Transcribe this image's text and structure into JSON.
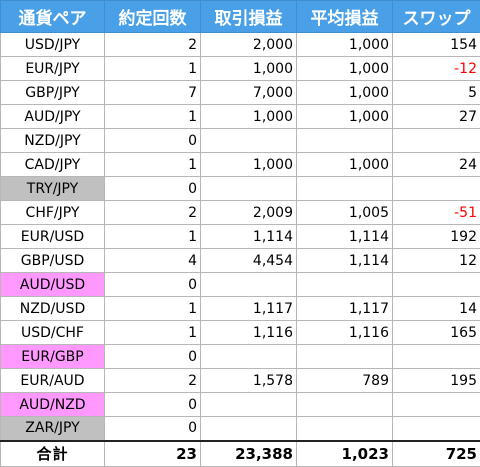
{
  "colors": {
    "header_bg": "#4aa0e6",
    "highlight_gray": "#c0c0c0",
    "highlight_pink": "#ff99ff",
    "negative": "#ff0000"
  },
  "headers": [
    "通貨ペア",
    "約定回数",
    "取引損益",
    "平均損益",
    "スワップ"
  ],
  "rows": [
    {
      "pair": "USD/JPY",
      "count": "2",
      "pnl": "2,000",
      "avg": "1,000",
      "swap": "154",
      "highlight": "",
      "neg": false
    },
    {
      "pair": "EUR/JPY",
      "count": "1",
      "pnl": "1,000",
      "avg": "1,000",
      "swap": "-12",
      "highlight": "",
      "neg": true
    },
    {
      "pair": "GBP/JPY",
      "count": "7",
      "pnl": "7,000",
      "avg": "1,000",
      "swap": "5",
      "highlight": "",
      "neg": false
    },
    {
      "pair": "AUD/JPY",
      "count": "1",
      "pnl": "1,000",
      "avg": "1,000",
      "swap": "27",
      "highlight": "",
      "neg": false
    },
    {
      "pair": "NZD/JPY",
      "count": "0",
      "pnl": "",
      "avg": "",
      "swap": "",
      "highlight": "",
      "neg": false
    },
    {
      "pair": "CAD/JPY",
      "count": "1",
      "pnl": "1,000",
      "avg": "1,000",
      "swap": "24",
      "highlight": "",
      "neg": false
    },
    {
      "pair": "TRY/JPY",
      "count": "0",
      "pnl": "",
      "avg": "",
      "swap": "",
      "highlight": "gray",
      "neg": false
    },
    {
      "pair": "CHF/JPY",
      "count": "2",
      "pnl": "2,009",
      "avg": "1,005",
      "swap": "-51",
      "highlight": "",
      "neg": true
    },
    {
      "pair": "EUR/USD",
      "count": "1",
      "pnl": "1,114",
      "avg": "1,114",
      "swap": "192",
      "highlight": "",
      "neg": false
    },
    {
      "pair": "GBP/USD",
      "count": "4",
      "pnl": "4,454",
      "avg": "1,114",
      "swap": "12",
      "highlight": "",
      "neg": false
    },
    {
      "pair": "AUD/USD",
      "count": "0",
      "pnl": "",
      "avg": "",
      "swap": "",
      "highlight": "pink",
      "neg": false
    },
    {
      "pair": "NZD/USD",
      "count": "1",
      "pnl": "1,117",
      "avg": "1,117",
      "swap": "14",
      "highlight": "",
      "neg": false
    },
    {
      "pair": "USD/CHF",
      "count": "1",
      "pnl": "1,116",
      "avg": "1,116",
      "swap": "165",
      "highlight": "",
      "neg": false
    },
    {
      "pair": "EUR/GBP",
      "count": "0",
      "pnl": "",
      "avg": "",
      "swap": "",
      "highlight": "pink",
      "neg": false
    },
    {
      "pair": "EUR/AUD",
      "count": "2",
      "pnl": "1,578",
      "avg": "789",
      "swap": "195",
      "highlight": "",
      "neg": false
    },
    {
      "pair": "AUD/NZD",
      "count": "0",
      "pnl": "",
      "avg": "",
      "swap": "",
      "highlight": "pink",
      "neg": false
    },
    {
      "pair": "ZAR/JPY",
      "count": "0",
      "pnl": "",
      "avg": "",
      "swap": "",
      "highlight": "gray",
      "neg": false
    }
  ],
  "total": {
    "label": "合計",
    "count": "23",
    "pnl": "23,388",
    "avg": "1,023",
    "swap": "725"
  }
}
